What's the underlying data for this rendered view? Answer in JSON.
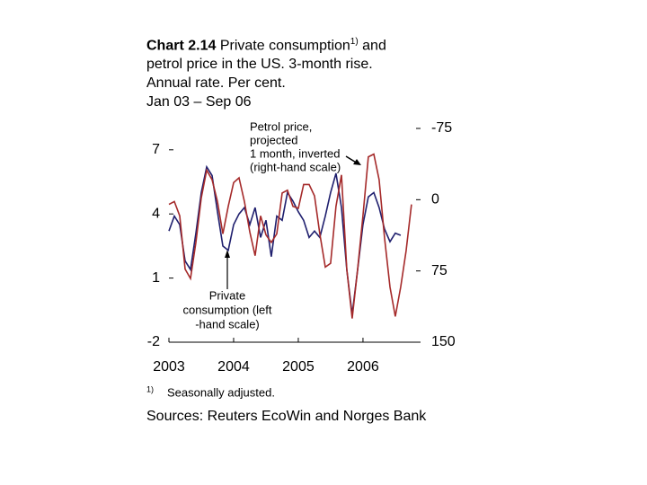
{
  "chart_data": {
    "type": "line",
    "title_label": "Chart 2.14",
    "title": [
      "Private consumption",
      "and",
      "petrol price in the US. 3-month rise.",
      "Annual rate. Per cent.",
      "Jan 03 – Sep 06"
    ],
    "title_footnote_marker": "1)",
    "x": [
      2003,
      2003.083,
      2003.167,
      2003.25,
      2003.333,
      2003.417,
      2003.5,
      2003.583,
      2003.667,
      2003.75,
      2003.833,
      2003.917,
      2004,
      2004.083,
      2004.167,
      2004.25,
      2004.333,
      2004.417,
      2004.5,
      2004.583,
      2004.667,
      2004.75,
      2004.833,
      2004.917,
      2005,
      2005.083,
      2005.167,
      2005.25,
      2005.333,
      2005.417,
      2005.5,
      2005.583,
      2005.667,
      2005.75,
      2005.833,
      2005.917,
      2006,
      2006.083,
      2006.167,
      2006.25,
      2006.333,
      2006.417,
      2006.5,
      2006.583,
      2006.667,
      2006.75
    ],
    "xlim": [
      2003,
      2006.89
    ],
    "xticks": [
      2003,
      2004,
      2005,
      2006
    ],
    "ylim": [
      -2,
      8
    ],
    "yticks": [
      -2,
      1,
      4,
      7
    ],
    "y2lim": [
      150,
      -75
    ],
    "y2ticks": [
      -75,
      0,
      75,
      150
    ],
    "series": [
      {
        "name": "Private consumption (left -hand scale)",
        "color": "#1f1f6e",
        "axis": "y",
        "values": [
          3.2,
          3.9,
          3.5,
          1.8,
          1.4,
          3.1,
          5.0,
          6.2,
          5.8,
          4.1,
          2.5,
          2.3,
          3.5,
          4.0,
          4.3,
          3.5,
          4.3,
          2.9,
          3.7,
          2.0,
          3.9,
          3.7,
          5.0,
          4.6,
          4.1,
          3.7,
          2.9,
          3.2,
          2.9,
          3.9,
          5.0,
          5.9,
          4.3,
          1.4,
          -0.7,
          1.4,
          3.5,
          4.8,
          5.0,
          4.3,
          3.3,
          2.7,
          3.1,
          3.0,
          null,
          null
        ]
      },
      {
        "name": "Petrol price, projected 1 month, inverted (right-hand scale)",
        "color": "#a52a2a",
        "axis": "y2",
        "values": [
          5,
          2,
          17,
          73,
          83,
          45,
          -2,
          -31,
          -21,
          2,
          36,
          7,
          -18,
          -23,
          2,
          34,
          59,
          17,
          37,
          45,
          36,
          -7,
          -10,
          7,
          9,
          -16,
          -16,
          -4,
          36,
          71,
          67,
          7,
          -26,
          73,
          125,
          73,
          17,
          -45,
          -48,
          -21,
          40,
          92,
          123,
          92,
          54,
          5
        ]
      }
    ],
    "annotations": {
      "petrol": [
        "Petrol price,",
        "projected",
        "1 month, inverted",
        "(right-hand scale)"
      ],
      "consumption": [
        "Private",
        "consumption (left",
        "-hand scale)"
      ]
    },
    "footnote": {
      "marker": "1)",
      "text": "Seasonally adjusted."
    },
    "source": "Sources: Reuters EcoWin and Norges Bank"
  }
}
